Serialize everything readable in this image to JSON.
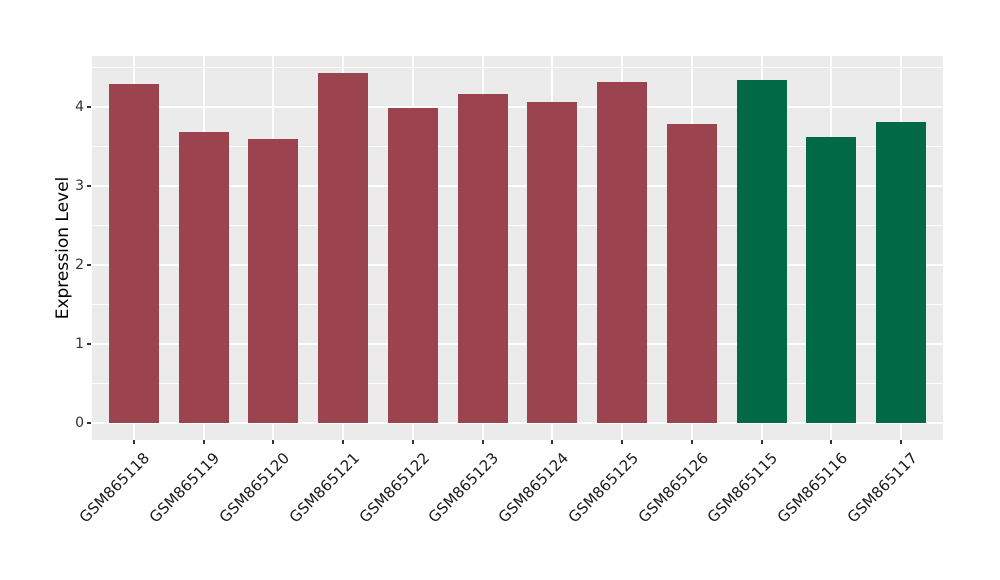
{
  "chart_data": {
    "type": "bar",
    "title": "",
    "xlabel": "",
    "ylabel": "Expression Level",
    "categories": [
      "GSM865118",
      "GSM865119",
      "GSM865120",
      "GSM865121",
      "GSM865122",
      "GSM865123",
      "GSM865124",
      "GSM865125",
      "GSM865126",
      "GSM865115",
      "GSM865116",
      "GSM865117"
    ],
    "values": [
      4.28,
      3.68,
      3.59,
      4.42,
      3.98,
      4.16,
      4.06,
      4.31,
      3.78,
      4.33,
      3.61,
      3.81
    ],
    "bar_colors": [
      "#9B4450",
      "#9B4450",
      "#9B4450",
      "#9B4450",
      "#9B4450",
      "#9B4450",
      "#9B4450",
      "#9B4450",
      "#9B4450",
      "#026946",
      "#026946",
      "#026946"
    ],
    "yticks": [
      0,
      1,
      2,
      3,
      4
    ],
    "minor_yticks": [
      0.5,
      1.5,
      2.5,
      3.5,
      4.5
    ],
    "ylim": [
      -0.22,
      4.64
    ],
    "x_label_rotation": -45,
    "grid": true,
    "legend": false,
    "styles": {
      "panel_background": "#EBEBEB",
      "grid_color": "#FFFFFF",
      "tick_label_color": "#333333",
      "axis_title_color": "#000000",
      "figure_background": "#FFFFFF"
    }
  }
}
